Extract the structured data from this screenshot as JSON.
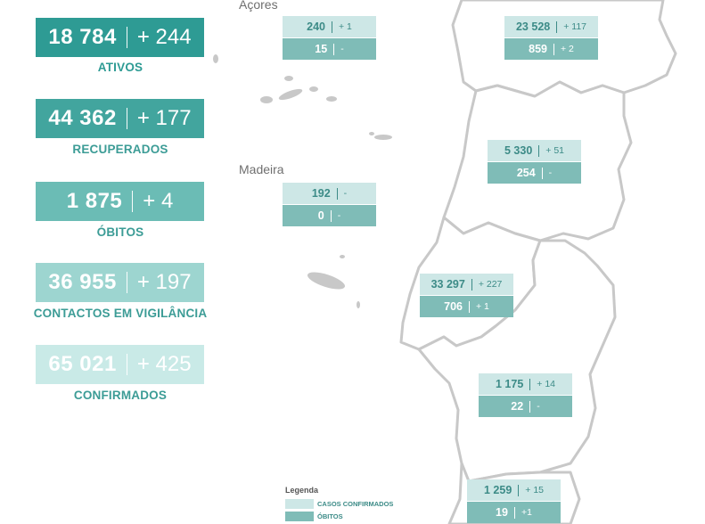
{
  "colors": {
    "accent_dark": "#2e9b94",
    "accent_mid": "#5fb3ad",
    "accent_light": "#7ec8c2",
    "accent_pale": "#a4d9d4",
    "accent_faint": "#c7e9e6",
    "label_text": "#3c8b87",
    "map_gray": "#c8c8c8"
  },
  "stats": [
    {
      "value": "18 784",
      "delta": "+ 244",
      "label": "ATIVOS"
    },
    {
      "value": "44 362",
      "delta": "+ 177",
      "label": "RECUPERADOS"
    },
    {
      "value": "1 875",
      "delta": "+ 4",
      "label": "ÓBITOS"
    },
    {
      "value": "36 955",
      "delta": "+ 197",
      "label": "CONTACTOS EM VIGILÂNCIA"
    },
    {
      "value": "65 021",
      "delta": "+ 425",
      "label": "CONFIRMADOS"
    }
  ],
  "map": {
    "acores_label": "Açores",
    "madeira_label": "Madeira"
  },
  "regions": [
    {
      "name": "acores",
      "cases": "240",
      "cases_delta": "+ 1",
      "deaths": "15",
      "deaths_delta": "-"
    },
    {
      "name": "norte",
      "cases": "23 528",
      "cases_delta": "+ 117",
      "deaths": "859",
      "deaths_delta": "+ 2"
    },
    {
      "name": "centro",
      "cases": "5 330",
      "cases_delta": "+ 51",
      "deaths": "254",
      "deaths_delta": "-"
    },
    {
      "name": "madeira",
      "cases": "192",
      "cases_delta": "-",
      "deaths": "0",
      "deaths_delta": "-"
    },
    {
      "name": "lisboa-vale-tejo",
      "cases": "33 297",
      "cases_delta": "+ 227",
      "deaths": "706",
      "deaths_delta": "+ 1"
    },
    {
      "name": "alentejo",
      "cases": "1 175",
      "cases_delta": "+ 14",
      "deaths": "22",
      "deaths_delta": "-"
    },
    {
      "name": "algarve",
      "cases": "1 259",
      "cases_delta": "+ 15",
      "deaths": "19",
      "deaths_delta": "+1"
    }
  ],
  "legend": {
    "title": "Legenda",
    "cases_label": "CASOS CONFIRMADOS",
    "deaths_label": "ÓBITOS"
  }
}
